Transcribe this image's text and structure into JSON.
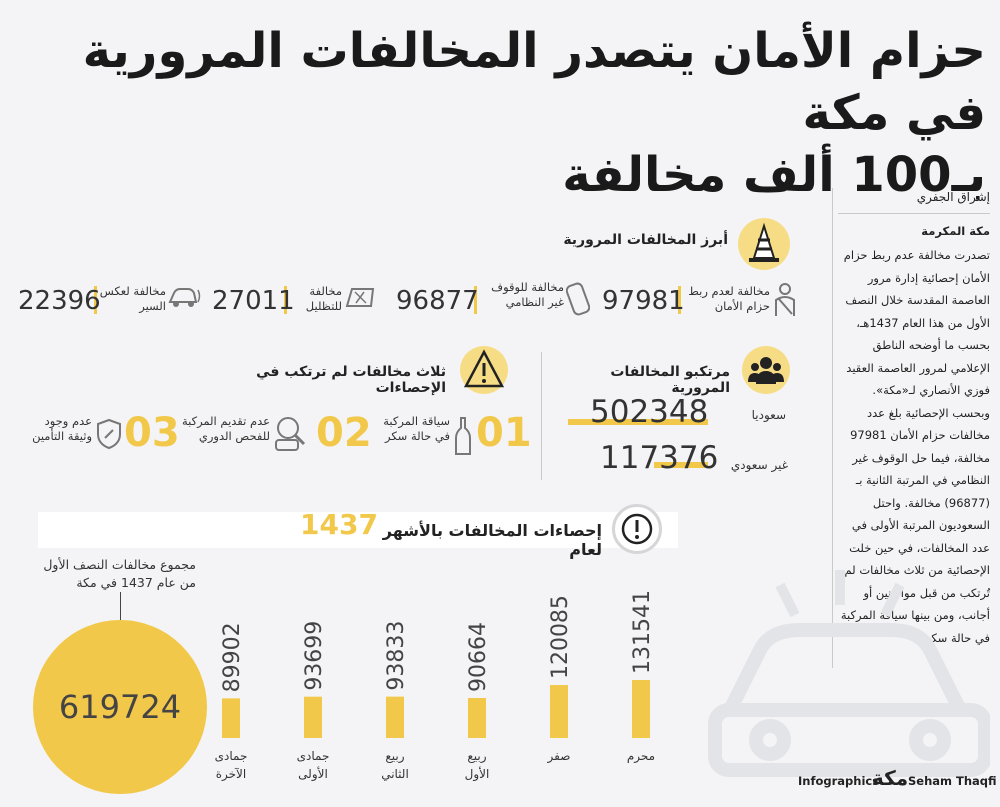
{
  "title": {
    "line1": "حزام الأمان يتصدر المخالفات المرورية في مكة",
    "line2": "بـ100 ألف مخالفة"
  },
  "sidebar": {
    "author": "إشراق الجفري",
    "place": "مكة المكرمة",
    "body": "تصدرت مخالفة عدم ربط حزام الأمان إحصائية إدارة مرور العاصمة المقدسة خلال النصف الأول من هذا العام 1437هـ، بحسب ما أوضحه الناطق الإعلامي لمرور العاصمة العقيد فوزي الأنصاري لـ«مكة». وبحسب الإحصائية بلغ عدد مخالفات حزام الأمان 97981 مخالفة، فيما حل الوقوف غير النظامي في المرتبة الثانية بـ (96877) مخالفة. واحتل السعوديون المرتبة الأولى في عدد المخالفات، في حين خلت الإحصائية من ثلاث مخالفات لم تُرتكب من قبل مواطنين أو أجانب، ومن بينها سياقة المركبة في حالة سكر."
  },
  "top_violations": {
    "heading": "أبرز المخالفات المرورية",
    "items": [
      {
        "label": "مخالفة لعدم ربط حزام الأمان",
        "value": "97981",
        "icon": "seatbelt-icon"
      },
      {
        "label": "مخالفة للوقوف غير النظامي",
        "value": "96877",
        "icon": "parked-car-icon"
      },
      {
        "label": "مخالفة للتظليل",
        "value": "27011",
        "icon": "tinted-window-icon"
      },
      {
        "label": "مخالفة لعكس السير",
        "value": "22396",
        "icon": "wrong-way-car-icon"
      }
    ]
  },
  "violators": {
    "heading": "مرتكبو المخالفات المرورية",
    "items": [
      {
        "label": "سعوديا",
        "value": "502348"
      },
      {
        "label": "غير سعودي",
        "value": "117376"
      }
    ]
  },
  "uncommitted": {
    "heading": "ثلاث مخالفات لم ترتكب في الإحصاءات",
    "items": [
      {
        "num": "01",
        "label": "سياقة المركبة في حالة سكر",
        "icon": "bottle-icon"
      },
      {
        "num": "02",
        "label": "عدم تقديم المركبة للفحص الدوري",
        "icon": "inspection-car-icon"
      },
      {
        "num": "03",
        "label": "عدم وجود وثيقة التأمين",
        "icon": "shield-icon"
      }
    ]
  },
  "monthly": {
    "heading": "إحصاءات المخالفات بالأشهر لعام",
    "year": "1437",
    "total_caption": "مجموع مخالفات النصف الأول من عام 1437 في مكة",
    "total": "619724"
  },
  "chart_data": {
    "type": "bar",
    "categories": [
      "محرم",
      "صفر",
      "ربيع الأول",
      "ربيع الثاني",
      "جمادى الأولى",
      "جمادى الآخرة"
    ],
    "values": [
      131541,
      120085,
      90664,
      93833,
      93699,
      89902
    ],
    "title": "إحصاءات المخالفات بالأشهر لعام 1437",
    "xlabel": "",
    "ylabel": ""
  },
  "footer": {
    "infographics": "Infographics",
    "logo": "مكة",
    "designer": "Seham Thaqfi"
  },
  "colors": {
    "accent": "#f2c84b",
    "icon_bg": "#f6dd85",
    "text": "#222222",
    "background": "#f4f4f6"
  }
}
